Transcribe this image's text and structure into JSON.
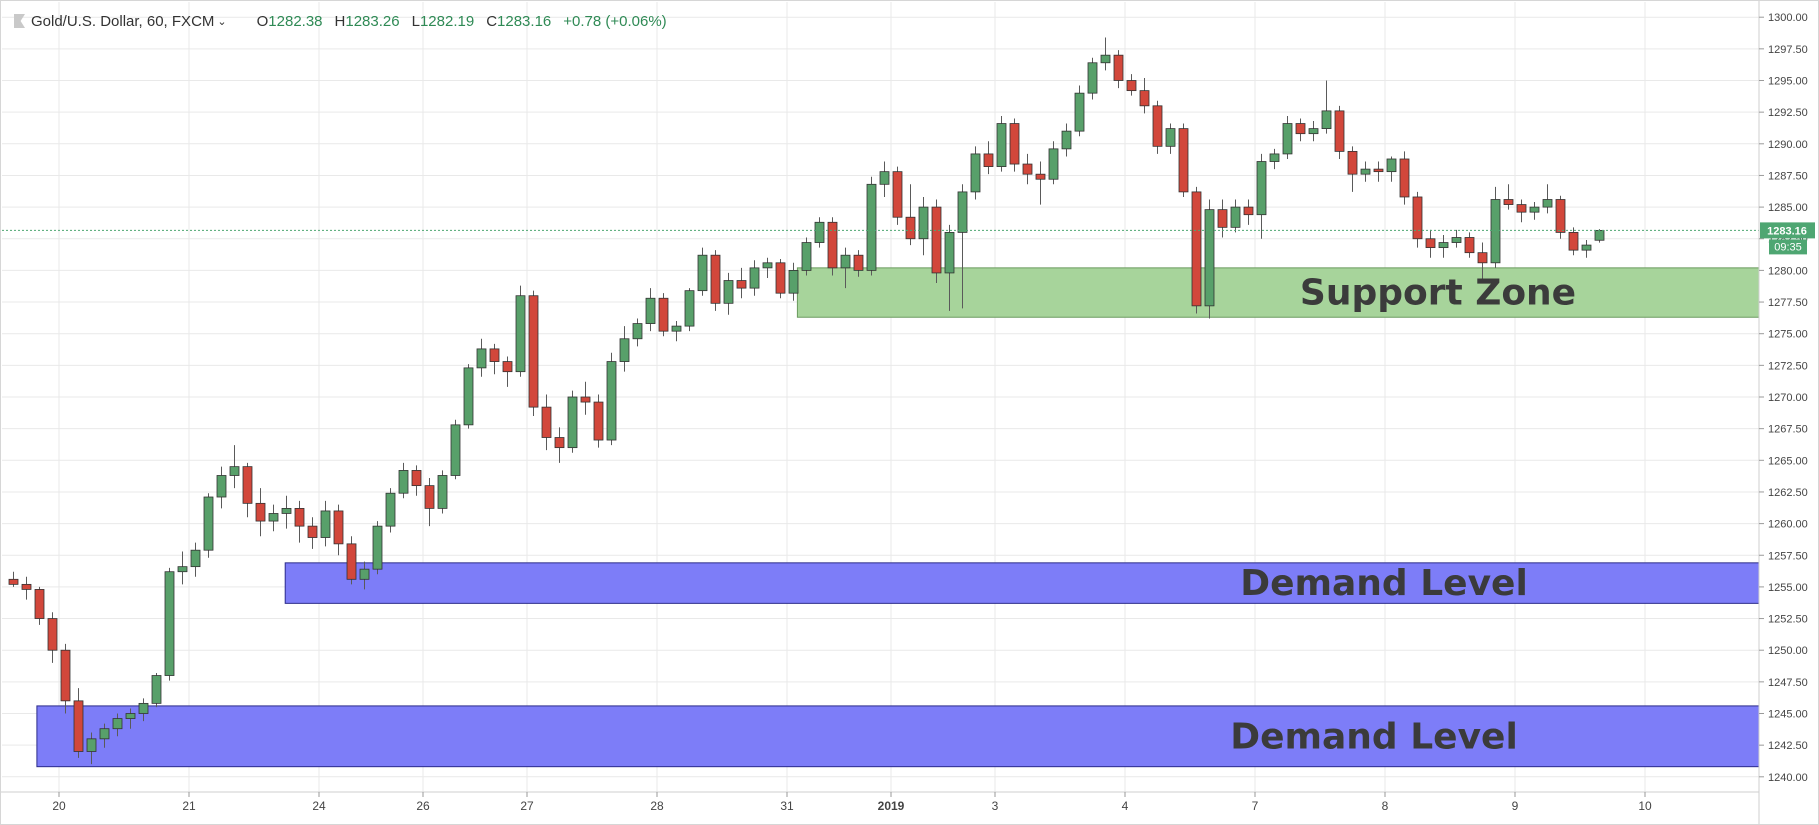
{
  "header": {
    "symbol": "Gold/U.S. Dollar, 60, FXCM",
    "open_label": "O",
    "open": "1282.38",
    "high_label": "H",
    "high": "1283.26",
    "low_label": "L",
    "low": "1282.19",
    "close_label": "C",
    "close": "1283.16",
    "change": "+0.78 (+0.06%)"
  },
  "price_badge": {
    "price": "1283.16",
    "countdown": "09:35"
  },
  "colors": {
    "up": "#58a06a",
    "down": "#d2473b",
    "support_fill": "#a7d49b",
    "demand_fill": "#7d7df8",
    "badge": "#4ea672",
    "grid": "#e9e9e9"
  },
  "chart_data": {
    "type": "candlestick",
    "y_ticks": [
      "1240.00",
      "1242.50",
      "1245.00",
      "1247.50",
      "1250.00",
      "1252.50",
      "1255.00",
      "1257.50",
      "1260.00",
      "1262.50",
      "1265.00",
      "1267.50",
      "1270.00",
      "1272.50",
      "1275.00",
      "1277.50",
      "1280.00",
      "1282.50",
      "1285.00",
      "1287.50",
      "1290.00",
      "1292.50",
      "1295.00",
      "1297.50",
      "1300.00"
    ],
    "ylim": [
      1238.8,
      1301.2
    ],
    "x_ticks": [
      {
        "label": "20",
        "bar": 4
      },
      {
        "label": "21",
        "bar": 14
      },
      {
        "label": "24",
        "bar": 24
      },
      {
        "label": "26",
        "bar": 32
      },
      {
        "label": "27",
        "bar": 40
      },
      {
        "label": "28",
        "bar": 50
      },
      {
        "label": "31",
        "bar": 60
      },
      {
        "label": "2019",
        "bar": 68,
        "bold": true
      },
      {
        "label": "3",
        "bar": 76
      },
      {
        "label": "4",
        "bar": 86
      },
      {
        "label": "7",
        "bar": 96
      },
      {
        "label": "8",
        "bar": 106
      },
      {
        "label": "9",
        "bar": 116
      },
      {
        "label": "10",
        "bar": 126
      }
    ],
    "x_range_bars": 136,
    "zones": [
      {
        "label": "Support Zone",
        "y_low": 1276.3,
        "y_high": 1280.2,
        "from_bar": 60.8,
        "color": "support"
      },
      {
        "label": "Demand Level",
        "y_low": 1253.7,
        "y_high": 1256.9,
        "from_bar": 21.4,
        "color": "demand"
      },
      {
        "label": "Demand Level",
        "y_low": 1240.8,
        "y_high": 1245.6,
        "from_bar": 2.3,
        "color": "demand"
      }
    ],
    "last_price": 1283.16,
    "candles": [
      [
        1255.6,
        1256.2,
        1255.0,
        1255.2
      ],
      [
        1255.2,
        1255.8,
        1254.0,
        1254.8
      ],
      [
        1254.8,
        1255.0,
        1252.0,
        1252.5
      ],
      [
        1252.5,
        1253.0,
        1249.0,
        1250.0
      ],
      [
        1250.0,
        1250.5,
        1245.0,
        1246.0
      ],
      [
        1246.0,
        1247.0,
        1241.5,
        1242.0
      ],
      [
        1242.0,
        1243.5,
        1241.0,
        1243.0
      ],
      [
        1243.0,
        1244.2,
        1242.3,
        1243.8
      ],
      [
        1243.8,
        1245.0,
        1243.2,
        1244.6
      ],
      [
        1244.6,
        1245.4,
        1243.8,
        1245.0
      ],
      [
        1245.0,
        1246.2,
        1244.4,
        1245.8
      ],
      [
        1245.8,
        1248.2,
        1245.5,
        1248.0
      ],
      [
        1248.0,
        1256.5,
        1247.6,
        1256.2
      ],
      [
        1256.2,
        1257.8,
        1255.2,
        1256.6
      ],
      [
        1256.6,
        1258.5,
        1255.8,
        1257.9
      ],
      [
        1257.9,
        1262.4,
        1257.3,
        1262.1
      ],
      [
        1262.1,
        1264.5,
        1261.2,
        1263.8
      ],
      [
        1263.8,
        1266.2,
        1262.8,
        1264.5
      ],
      [
        1264.5,
        1264.8,
        1260.5,
        1261.6
      ],
      [
        1261.6,
        1262.8,
        1259.0,
        1260.2
      ],
      [
        1260.2,
        1261.5,
        1259.4,
        1260.8
      ],
      [
        1260.8,
        1262.2,
        1259.6,
        1261.2
      ],
      [
        1261.2,
        1261.8,
        1258.5,
        1259.8
      ],
      [
        1259.8,
        1260.5,
        1258.0,
        1258.9
      ],
      [
        1258.9,
        1261.8,
        1258.2,
        1261.0
      ],
      [
        1261.0,
        1261.5,
        1257.5,
        1258.4
      ],
      [
        1258.4,
        1259.0,
        1255.2,
        1255.6
      ],
      [
        1255.6,
        1257.0,
        1254.8,
        1256.4
      ],
      [
        1256.4,
        1260.2,
        1256.0,
        1259.8
      ],
      [
        1259.8,
        1262.8,
        1259.3,
        1262.4
      ],
      [
        1262.4,
        1264.8,
        1262.0,
        1264.2
      ],
      [
        1264.2,
        1264.6,
        1262.2,
        1263.0
      ],
      [
        1263.0,
        1263.6,
        1259.8,
        1261.2
      ],
      [
        1261.2,
        1264.2,
        1260.8,
        1263.8
      ],
      [
        1263.8,
        1268.2,
        1263.5,
        1267.8
      ],
      [
        1267.8,
        1272.6,
        1267.5,
        1272.3
      ],
      [
        1272.3,
        1274.6,
        1271.6,
        1273.8
      ],
      [
        1273.8,
        1274.2,
        1271.8,
        1272.8
      ],
      [
        1272.8,
        1273.2,
        1270.8,
        1272.0
      ],
      [
        1272.0,
        1278.8,
        1271.6,
        1278.0
      ],
      [
        1278.0,
        1278.4,
        1268.5,
        1269.2
      ],
      [
        1269.2,
        1270.2,
        1265.8,
        1266.8
      ],
      [
        1266.8,
        1267.6,
        1264.8,
        1266.0
      ],
      [
        1266.0,
        1270.5,
        1265.6,
        1270.0
      ],
      [
        1270.0,
        1271.2,
        1268.6,
        1269.6
      ],
      [
        1269.6,
        1270.2,
        1266.0,
        1266.6
      ],
      [
        1266.6,
        1273.5,
        1266.2,
        1272.8
      ],
      [
        1272.8,
        1275.6,
        1272.0,
        1274.6
      ],
      [
        1274.6,
        1276.2,
        1274.0,
        1275.8
      ],
      [
        1275.8,
        1278.6,
        1275.2,
        1277.8
      ],
      [
        1277.8,
        1278.2,
        1274.8,
        1275.2
      ],
      [
        1275.2,
        1276.0,
        1274.4,
        1275.6
      ],
      [
        1275.6,
        1278.6,
        1275.2,
        1278.4
      ],
      [
        1278.4,
        1281.8,
        1278.0,
        1281.2
      ],
      [
        1281.2,
        1281.6,
        1276.8,
        1277.4
      ],
      [
        1277.4,
        1279.8,
        1276.5,
        1279.2
      ],
      [
        1279.2,
        1280.2,
        1277.8,
        1278.6
      ],
      [
        1278.6,
        1280.8,
        1278.0,
        1280.2
      ],
      [
        1280.2,
        1281.0,
        1279.4,
        1280.6
      ],
      [
        1280.6,
        1280.9,
        1277.8,
        1278.2
      ],
      [
        1278.2,
        1280.6,
        1277.6,
        1280.0
      ],
      [
        1280.0,
        1282.6,
        1279.6,
        1282.2
      ],
      [
        1282.2,
        1284.2,
        1281.8,
        1283.8
      ],
      [
        1283.8,
        1284.2,
        1279.6,
        1280.2
      ],
      [
        1280.2,
        1281.8,
        1278.6,
        1281.2
      ],
      [
        1281.2,
        1281.6,
        1279.5,
        1280.0
      ],
      [
        1280.0,
        1287.4,
        1279.6,
        1286.8
      ],
      [
        1286.8,
        1288.6,
        1285.8,
        1287.8
      ],
      [
        1287.8,
        1288.2,
        1283.6,
        1284.2
      ],
      [
        1284.2,
        1286.8,
        1282.0,
        1282.5
      ],
      [
        1282.5,
        1285.8,
        1281.2,
        1285.0
      ],
      [
        1285.0,
        1285.6,
        1279.0,
        1279.8
      ],
      [
        1279.8,
        1283.6,
        1276.8,
        1283.0
      ],
      [
        1283.0,
        1286.8,
        1277.0,
        1286.2
      ],
      [
        1286.2,
        1289.8,
        1285.6,
        1289.2
      ],
      [
        1289.2,
        1290.2,
        1287.6,
        1288.2
      ],
      [
        1288.2,
        1292.2,
        1287.8,
        1291.6
      ],
      [
        1291.6,
        1292.0,
        1287.8,
        1288.4
      ],
      [
        1288.4,
        1289.2,
        1286.8,
        1287.6
      ],
      [
        1287.6,
        1288.6,
        1285.2,
        1287.2
      ],
      [
        1287.2,
        1290.2,
        1286.8,
        1289.6
      ],
      [
        1289.6,
        1291.6,
        1289.0,
        1291.0
      ],
      [
        1291.0,
        1294.6,
        1290.6,
        1294.0
      ],
      [
        1294.0,
        1296.8,
        1293.5,
        1296.4
      ],
      [
        1296.4,
        1298.4,
        1295.8,
        1297.0
      ],
      [
        1297.0,
        1297.4,
        1294.4,
        1295.0
      ],
      [
        1295.0,
        1295.5,
        1293.8,
        1294.2
      ],
      [
        1294.2,
        1295.2,
        1292.4,
        1293.0
      ],
      [
        1293.0,
        1293.4,
        1289.2,
        1289.8
      ],
      [
        1289.8,
        1291.6,
        1289.2,
        1291.2
      ],
      [
        1291.2,
        1291.6,
        1285.8,
        1286.2
      ],
      [
        1286.2,
        1286.6,
        1276.6,
        1277.2
      ],
      [
        1277.2,
        1285.6,
        1276.2,
        1284.8
      ],
      [
        1284.8,
        1285.6,
        1282.6,
        1283.4
      ],
      [
        1283.4,
        1285.6,
        1283.0,
        1285.0
      ],
      [
        1285.0,
        1285.6,
        1283.6,
        1284.4
      ],
      [
        1284.4,
        1289.2,
        1282.5,
        1288.6
      ],
      [
        1288.6,
        1289.6,
        1288.0,
        1289.2
      ],
      [
        1289.2,
        1292.2,
        1288.8,
        1291.6
      ],
      [
        1291.6,
        1292.0,
        1290.2,
        1290.8
      ],
      [
        1290.8,
        1291.8,
        1290.2,
        1291.2
      ],
      [
        1291.2,
        1295.0,
        1290.8,
        1292.6
      ],
      [
        1292.6,
        1293.0,
        1288.8,
        1289.4
      ],
      [
        1289.4,
        1289.8,
        1286.2,
        1287.6
      ],
      [
        1287.6,
        1288.6,
        1287.0,
        1288.0
      ],
      [
        1288.0,
        1288.6,
        1287.0,
        1287.8
      ],
      [
        1287.8,
        1289.0,
        1287.0,
        1288.8
      ],
      [
        1288.8,
        1289.4,
        1285.2,
        1285.8
      ],
      [
        1285.8,
        1286.2,
        1281.8,
        1282.5
      ],
      [
        1282.5,
        1283.2,
        1281.0,
        1281.8
      ],
      [
        1281.8,
        1282.8,
        1281.0,
        1282.2
      ],
      [
        1282.2,
        1283.2,
        1281.8,
        1282.6
      ],
      [
        1282.6,
        1283.0,
        1281.0,
        1281.4
      ],
      [
        1281.4,
        1282.2,
        1279.2,
        1280.6
      ],
      [
        1280.6,
        1286.6,
        1280.2,
        1285.6
      ],
      [
        1285.6,
        1286.8,
        1284.8,
        1285.2
      ],
      [
        1285.2,
        1285.6,
        1283.8,
        1284.6
      ],
      [
        1284.6,
        1285.4,
        1284.0,
        1285.0
      ],
      [
        1285.0,
        1286.8,
        1284.5,
        1285.6
      ],
      [
        1285.6,
        1285.9,
        1282.5,
        1283.0
      ],
      [
        1283.0,
        1283.4,
        1281.2,
        1281.6
      ],
      [
        1281.6,
        1282.4,
        1281.0,
        1282.0
      ],
      [
        1282.38,
        1283.26,
        1282.19,
        1283.16
      ]
    ]
  },
  "labels": {
    "support_zone": "Support Zone",
    "demand_level_1": "Demand Level",
    "demand_level_2": "Demand Level"
  }
}
